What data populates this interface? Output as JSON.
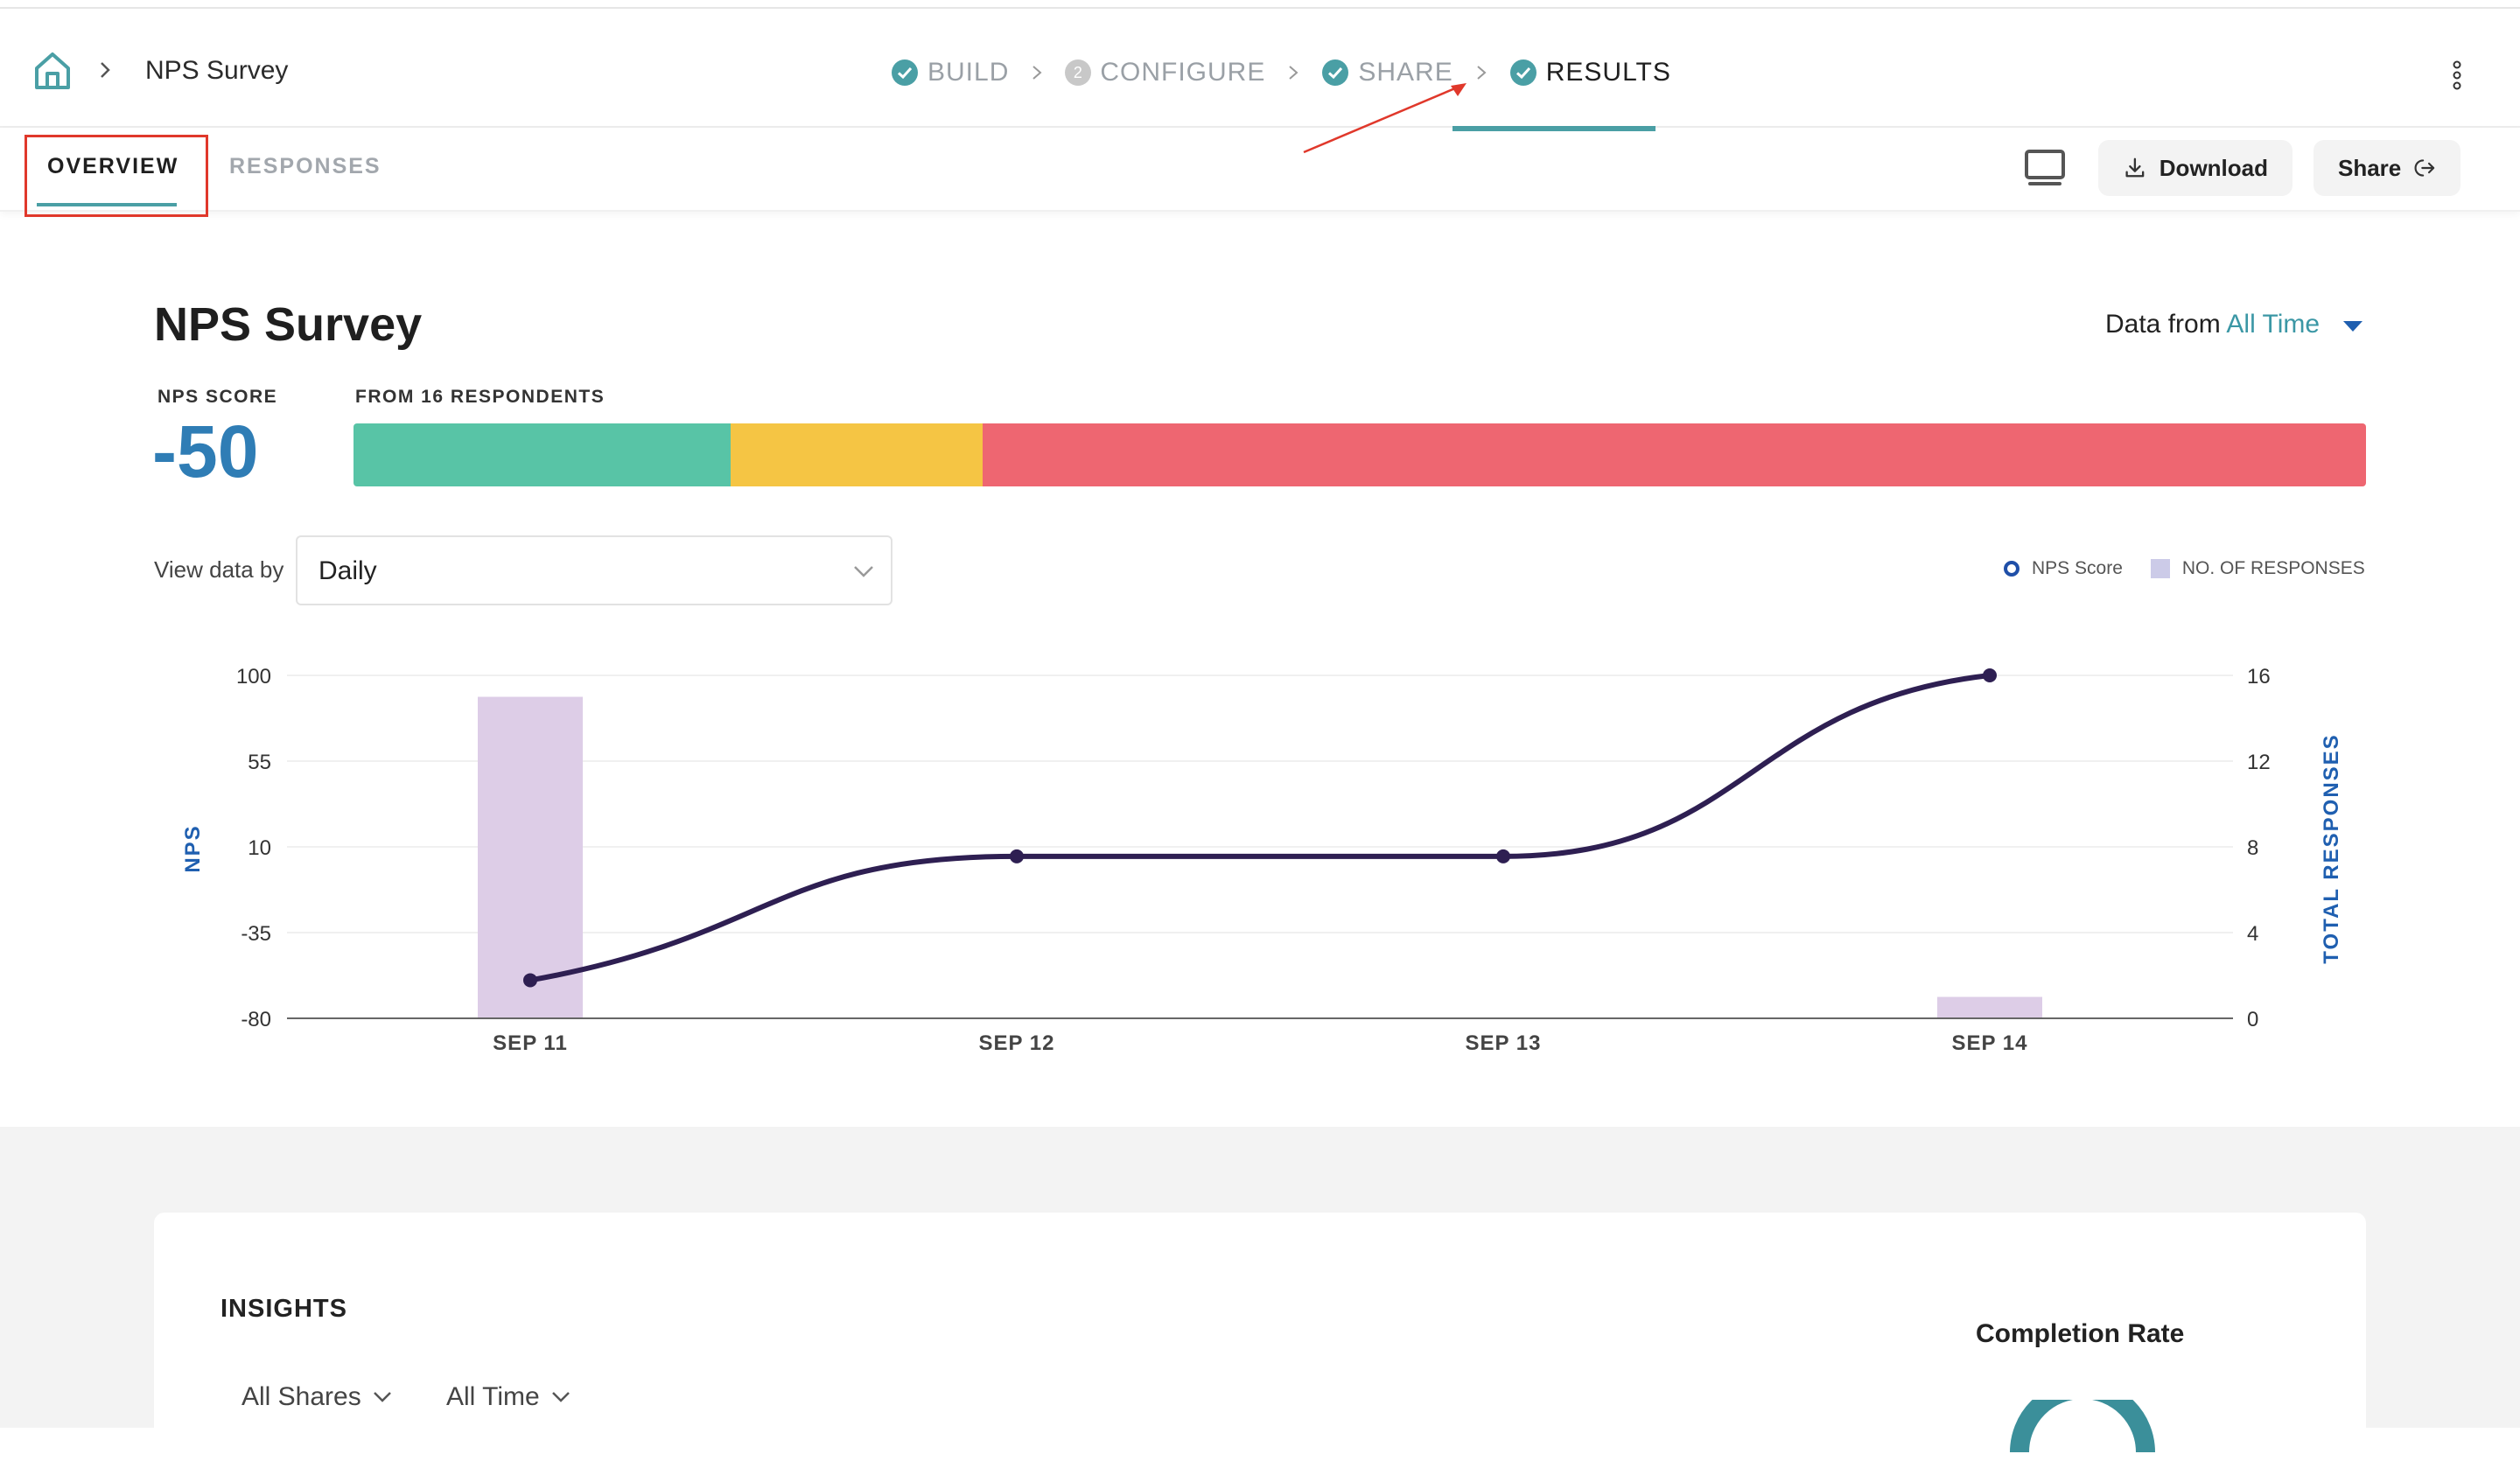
{
  "header": {
    "breadcrumb_title": "NPS Survey",
    "steps": [
      {
        "label": "BUILD",
        "state": "done"
      },
      {
        "label": "CONFIGURE",
        "state": "number",
        "number": "2"
      },
      {
        "label": "SHARE",
        "state": "done"
      },
      {
        "label": "RESULTS",
        "state": "active"
      }
    ]
  },
  "subnav": {
    "tabs": [
      "OVERVIEW",
      "RESPONSES"
    ],
    "download_label": "Download",
    "share_label": "Share"
  },
  "main": {
    "title": "NPS Survey",
    "data_from_prefix": "Data from",
    "data_from_value": "All Time",
    "nps_score_label": "NPS SCORE",
    "nps_score": "-50",
    "respondents_label": "FROM 16 RESPONDENTS",
    "distribution": [
      {
        "segment": "promoters",
        "fraction": 0.1875,
        "color": "#58c4a6"
      },
      {
        "segment": "passives",
        "fraction": 0.125,
        "color": "#f5c544"
      },
      {
        "segment": "detractors",
        "fraction": 0.6875,
        "color": "#ee6671"
      }
    ],
    "view_by_label": "View data by",
    "view_by_value": "Daily"
  },
  "chart_data": {
    "type": "bar",
    "categories": [
      "SEP 11",
      "SEP 12",
      "SEP 13",
      "SEP 14"
    ],
    "series": [
      {
        "name": "NPS Score",
        "type": "line",
        "axis": "left",
        "values": [
          -60,
          5,
          5,
          100
        ],
        "color": "#2e1f52"
      },
      {
        "name": "NO. OF RESPONSES",
        "type": "bar",
        "axis": "right",
        "values": [
          15,
          0,
          0,
          1
        ],
        "color": "#ddcde7"
      }
    ],
    "y_left": {
      "label": "NPS",
      "ticks": [
        100,
        55,
        10,
        -35,
        -80
      ],
      "range": [
        -80,
        100
      ]
    },
    "y_right": {
      "label": "TOTAL RESPONSES",
      "ticks": [
        16,
        12,
        8,
        4,
        0
      ],
      "range": [
        0,
        16
      ]
    },
    "legend_position": "top-right"
  },
  "insights": {
    "title": "INSIGHTS",
    "filters": [
      "All Shares",
      "All Time"
    ],
    "completion_rate_label": "Completion Rate"
  },
  "colors": {
    "accent": "#4a9fa5",
    "nps_blue": "#2f7db5",
    "axis_blue": "#1f5fb0"
  }
}
